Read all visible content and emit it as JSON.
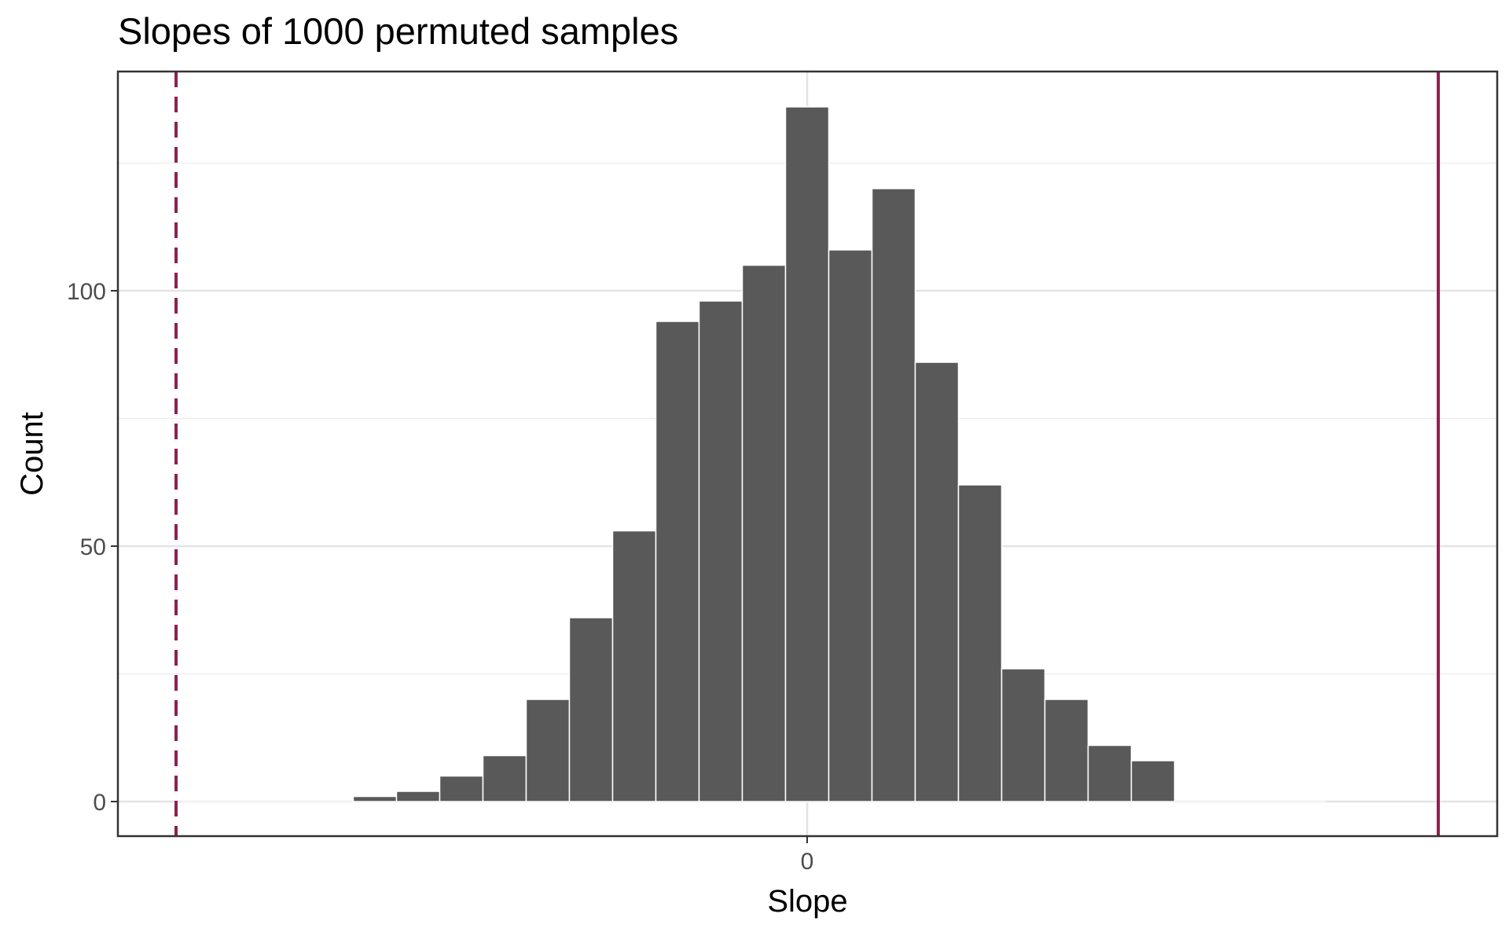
{
  "chart_data": {
    "type": "bar",
    "title": "Slopes of 1000 permuted samples",
    "xlabel": "Slope",
    "ylabel": "Count",
    "ylim": [
      0,
      140
    ],
    "yticks": [
      0,
      50,
      100
    ],
    "yticks_minor": [
      25,
      75,
      125
    ],
    "xticks": [
      0
    ],
    "x_range_bins": [
      -16,
      14.5
    ],
    "bin_width": 1,
    "bins": [
      {
        "left": -10.5,
        "count": 1
      },
      {
        "left": -9.5,
        "count": 2
      },
      {
        "left": -8.5,
        "count": 5
      },
      {
        "left": -7.5,
        "count": 9
      },
      {
        "left": -6.5,
        "count": 20
      },
      {
        "left": -5.5,
        "count": 36
      },
      {
        "left": -4.5,
        "count": 53
      },
      {
        "left": -3.5,
        "count": 94
      },
      {
        "left": -2.5,
        "count": 98
      },
      {
        "left": -1.5,
        "count": 105
      },
      {
        "left": -0.5,
        "count": 136
      },
      {
        "left": 0.5,
        "count": 108
      },
      {
        "left": 1.5,
        "count": 120
      },
      {
        "left": 2.5,
        "count": 86
      },
      {
        "left": 3.5,
        "count": 62
      },
      {
        "left": 4.5,
        "count": 26
      },
      {
        "left": 5.5,
        "count": 20
      },
      {
        "left": 6.5,
        "count": 11
      },
      {
        "left": 7.5,
        "count": 8
      }
    ],
    "reference_lines": [
      {
        "x": -14.6,
        "style": "dashed",
        "color": "#8b2252"
      },
      {
        "x": 14.6,
        "style": "solid",
        "color": "#8b2252"
      }
    ],
    "grid": true,
    "bar_color": "#595959",
    "bar_edge_color": "#ffffff",
    "legend": "none"
  }
}
